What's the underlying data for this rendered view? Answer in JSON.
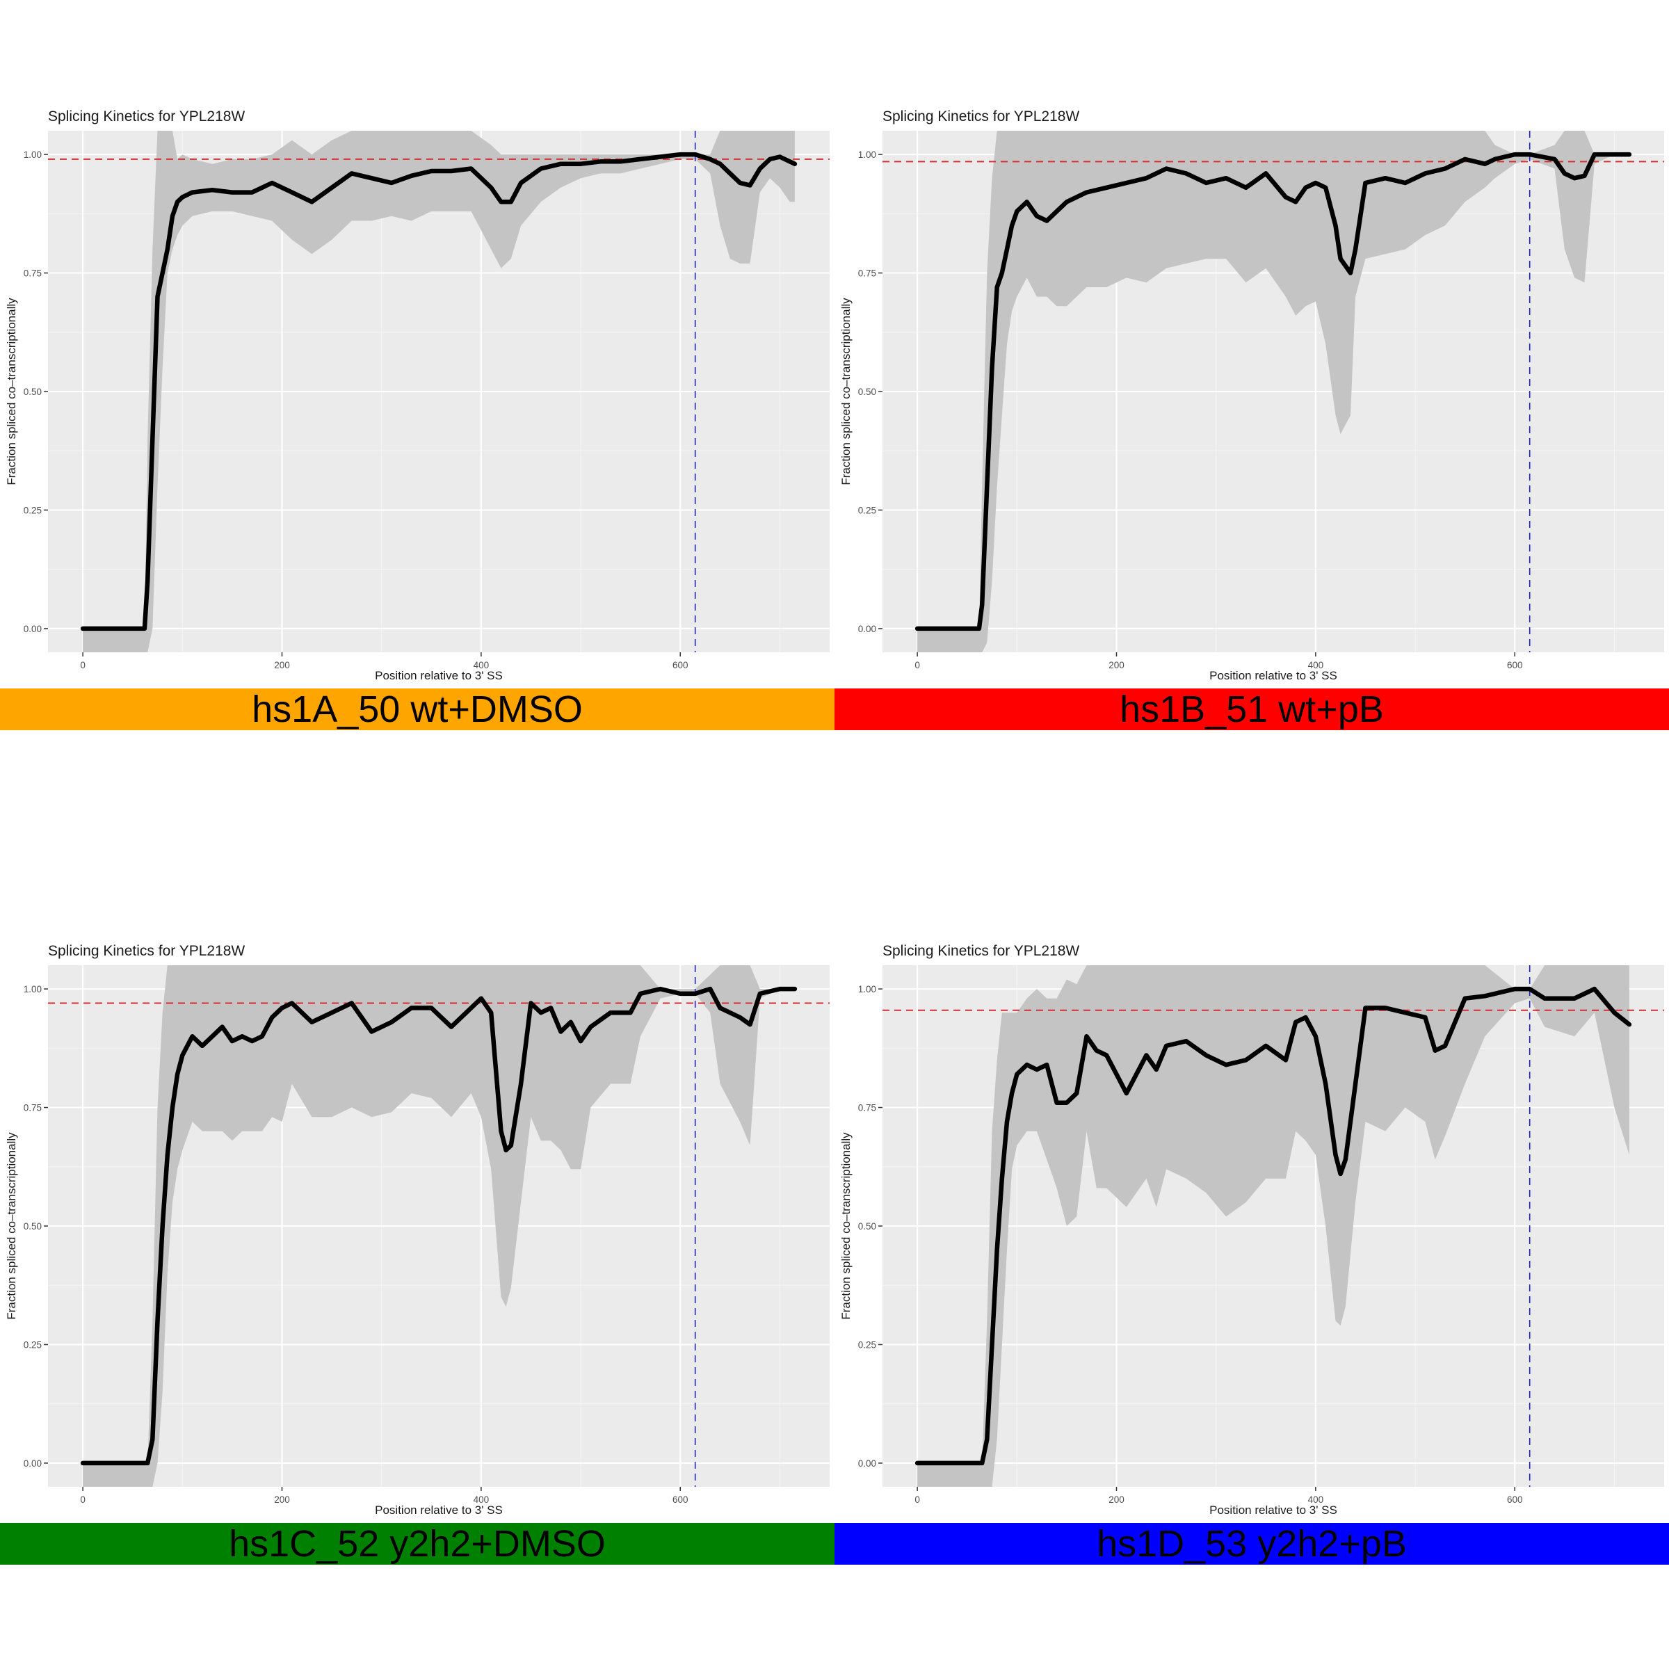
{
  "chart_data": [
    {
      "type": "line",
      "title": "Splicing Kinetics for YPL218W",
      "xlabel": "Position relative to 3' SS",
      "ylabel": "Fraction spliced co–transcriptionally",
      "xlim": [
        -35,
        750
      ],
      "ylim": [
        -0.05,
        1.05
      ],
      "x_ticks": [
        0,
        200,
        400,
        600
      ],
      "y_ticks": [
        0.0,
        0.25,
        0.5,
        0.75,
        1.0
      ],
      "x_tick_labels": [
        "0",
        "200",
        "400",
        "600"
      ],
      "y_tick_labels": [
        "0.00",
        "0.25",
        "0.50",
        "0.75",
        "1.00"
      ],
      "ref_h": 0.99,
      "ref_v": 615,
      "banner_label": "hs1A_50 wt+DMSO",
      "banner_color": "#FFA500",
      "series": [
        {
          "x": [
            0,
            62,
            65,
            70,
            75,
            80,
            85,
            90,
            95,
            100,
            110,
            130,
            150,
            170,
            190,
            210,
            230,
            250,
            270,
            290,
            310,
            330,
            350,
            370,
            390,
            410,
            420,
            430,
            440,
            460,
            480,
            500,
            520,
            540,
            560,
            580,
            600,
            615,
            630,
            640,
            650,
            660,
            670,
            680,
            690,
            700,
            710,
            715
          ],
          "y": [
            0.0,
            0.0,
            0.1,
            0.4,
            0.7,
            0.75,
            0.8,
            0.87,
            0.9,
            0.91,
            0.92,
            0.925,
            0.92,
            0.92,
            0.94,
            0.92,
            0.9,
            0.93,
            0.96,
            0.95,
            0.94,
            0.955,
            0.965,
            0.965,
            0.97,
            0.93,
            0.9,
            0.9,
            0.94,
            0.97,
            0.98,
            0.98,
            0.985,
            0.985,
            0.99,
            0.995,
            1.0,
            1.0,
            0.99,
            0.98,
            0.96,
            0.94,
            0.935,
            0.97,
            0.99,
            0.995,
            0.985,
            0.98
          ],
          "lower": [
            -0.05,
            -0.05,
            -0.05,
            0.0,
            0.3,
            0.55,
            0.75,
            0.8,
            0.83,
            0.85,
            0.87,
            0.88,
            0.88,
            0.87,
            0.86,
            0.82,
            0.79,
            0.82,
            0.86,
            0.86,
            0.87,
            0.86,
            0.88,
            0.88,
            0.88,
            0.8,
            0.76,
            0.78,
            0.85,
            0.9,
            0.93,
            0.95,
            0.96,
            0.96,
            0.97,
            0.98,
            0.99,
            0.99,
            0.96,
            0.85,
            0.78,
            0.77,
            0.77,
            0.92,
            0.95,
            0.93,
            0.9,
            0.9
          ],
          "upper": [
            0.0,
            0.0,
            0.4,
            0.8,
            1.05,
            1.05,
            1.05,
            1.05,
            0.99,
            1.0,
            0.99,
            0.98,
            0.99,
            0.99,
            1.0,
            1.03,
            1.0,
            1.03,
            1.05,
            1.05,
            1.05,
            1.05,
            1.05,
            1.05,
            1.05,
            1.02,
            1.0,
            1.0,
            1.0,
            1.0,
            1.0,
            1.0,
            1.0,
            1.0,
            1.0,
            1.0,
            1.0,
            1.0,
            1.0,
            1.05,
            1.05,
            1.05,
            1.05,
            1.05,
            1.05,
            1.05,
            1.05,
            1.05
          ]
        }
      ]
    },
    {
      "type": "line",
      "title": "Splicing Kinetics for YPL218W",
      "xlabel": "Position relative to 3' SS",
      "ylabel": "Fraction spliced co–transcriptionally",
      "xlim": [
        -35,
        750
      ],
      "ylim": [
        -0.05,
        1.05
      ],
      "x_ticks": [
        0,
        200,
        400,
        600
      ],
      "y_ticks": [
        0.0,
        0.25,
        0.5,
        0.75,
        1.0
      ],
      "x_tick_labels": [
        "0",
        "200",
        "400",
        "600"
      ],
      "y_tick_labels": [
        "0.00",
        "0.25",
        "0.50",
        "0.75",
        "1.00"
      ],
      "ref_h": 0.985,
      "ref_v": 615,
      "banner_label": "hs1B_51 wt+pB",
      "banner_color": "#FF0000",
      "series": [
        {
          "x": [
            0,
            62,
            65,
            70,
            75,
            80,
            85,
            90,
            95,
            100,
            110,
            120,
            130,
            140,
            150,
            170,
            190,
            210,
            230,
            250,
            270,
            290,
            310,
            330,
            350,
            370,
            380,
            390,
            400,
            410,
            420,
            425,
            435,
            440,
            450,
            470,
            490,
            510,
            530,
            550,
            570,
            580,
            600,
            615,
            640,
            650,
            660,
            670,
            680,
            700,
            715
          ],
          "y": [
            0.0,
            0.0,
            0.05,
            0.3,
            0.55,
            0.72,
            0.75,
            0.8,
            0.85,
            0.88,
            0.9,
            0.87,
            0.86,
            0.88,
            0.9,
            0.92,
            0.93,
            0.94,
            0.95,
            0.97,
            0.96,
            0.94,
            0.95,
            0.93,
            0.96,
            0.91,
            0.9,
            0.93,
            0.94,
            0.93,
            0.85,
            0.78,
            0.75,
            0.8,
            0.94,
            0.95,
            0.94,
            0.96,
            0.97,
            0.99,
            0.98,
            0.99,
            1.0,
            1.0,
            0.99,
            0.96,
            0.95,
            0.955,
            1.0,
            1.0,
            1.0
          ],
          "lower": [
            -0.05,
            -0.05,
            -0.05,
            -0.03,
            0.1,
            0.3,
            0.45,
            0.6,
            0.67,
            0.7,
            0.74,
            0.7,
            0.7,
            0.68,
            0.68,
            0.72,
            0.72,
            0.74,
            0.73,
            0.76,
            0.77,
            0.78,
            0.78,
            0.73,
            0.76,
            0.7,
            0.66,
            0.68,
            0.69,
            0.6,
            0.45,
            0.41,
            0.45,
            0.7,
            0.78,
            0.79,
            0.8,
            0.83,
            0.85,
            0.9,
            0.93,
            0.95,
            0.98,
            0.99,
            0.97,
            0.8,
            0.74,
            0.73,
            0.98,
            1.0,
            1.0
          ],
          "upper": [
            0.0,
            0.0,
            0.3,
            0.75,
            0.95,
            1.05,
            1.05,
            1.05,
            1.05,
            1.05,
            1.05,
            1.05,
            1.05,
            1.05,
            1.05,
            1.05,
            1.05,
            1.05,
            1.05,
            1.05,
            1.05,
            1.05,
            1.05,
            1.05,
            1.05,
            1.05,
            1.05,
            1.05,
            1.05,
            1.05,
            1.05,
            1.05,
            1.05,
            1.05,
            1.05,
            1.05,
            1.05,
            1.05,
            1.05,
            1.05,
            1.05,
            1.02,
            1.0,
            1.0,
            1.02,
            1.05,
            1.05,
            1.05,
            1.0,
            1.0,
            1.0
          ]
        }
      ]
    },
    {
      "type": "line",
      "title": "Splicing Kinetics for YPL218W",
      "xlabel": "Position relative to 3' SS",
      "ylabel": "Fraction spliced co–transcriptionally",
      "xlim": [
        -35,
        750
      ],
      "ylim": [
        -0.05,
        1.05
      ],
      "x_ticks": [
        0,
        200,
        400,
        600
      ],
      "y_ticks": [
        0.0,
        0.25,
        0.5,
        0.75,
        1.0
      ],
      "x_tick_labels": [
        "0",
        "200",
        "400",
        "600"
      ],
      "y_tick_labels": [
        "0.00",
        "0.25",
        "0.50",
        "0.75",
        "1.00"
      ],
      "ref_h": 0.97,
      "ref_v": 615,
      "banner_label": "hs1C_52 y2h2+DMSO",
      "banner_color": "#008000",
      "series": [
        {
          "x": [
            0,
            65,
            70,
            75,
            80,
            85,
            90,
            95,
            100,
            110,
            120,
            130,
            140,
            150,
            160,
            170,
            180,
            190,
            200,
            210,
            230,
            250,
            270,
            290,
            310,
            330,
            350,
            370,
            390,
            400,
            410,
            420,
            425,
            430,
            440,
            450,
            460,
            470,
            480,
            490,
            500,
            510,
            530,
            550,
            560,
            580,
            600,
            615,
            630,
            640,
            660,
            670,
            680,
            700,
            715
          ],
          "y": [
            0.0,
            0.0,
            0.05,
            0.3,
            0.5,
            0.65,
            0.75,
            0.82,
            0.86,
            0.9,
            0.88,
            0.9,
            0.92,
            0.89,
            0.9,
            0.89,
            0.9,
            0.94,
            0.96,
            0.97,
            0.93,
            0.95,
            0.97,
            0.91,
            0.93,
            0.96,
            0.96,
            0.92,
            0.96,
            0.98,
            0.95,
            0.7,
            0.66,
            0.67,
            0.8,
            0.97,
            0.95,
            0.96,
            0.91,
            0.93,
            0.89,
            0.92,
            0.95,
            0.95,
            0.99,
            1.0,
            0.99,
            0.99,
            1.0,
            0.96,
            0.94,
            0.925,
            0.99,
            1.0,
            1.0
          ],
          "lower": [
            -0.05,
            -0.05,
            -0.05,
            0.0,
            0.15,
            0.4,
            0.55,
            0.62,
            0.66,
            0.72,
            0.7,
            0.7,
            0.7,
            0.68,
            0.7,
            0.7,
            0.7,
            0.73,
            0.72,
            0.8,
            0.73,
            0.73,
            0.75,
            0.73,
            0.74,
            0.78,
            0.77,
            0.73,
            0.78,
            0.73,
            0.62,
            0.35,
            0.33,
            0.37,
            0.55,
            0.73,
            0.68,
            0.68,
            0.66,
            0.62,
            0.62,
            0.75,
            0.8,
            0.8,
            0.9,
            0.98,
            0.99,
            0.99,
            0.95,
            0.8,
            0.72,
            0.67,
            0.98,
            1.0,
            1.0
          ],
          "upper": [
            0.0,
            0.0,
            0.3,
            0.75,
            0.95,
            1.05,
            1.05,
            1.05,
            1.05,
            1.05,
            1.05,
            1.05,
            1.05,
            1.05,
            1.05,
            1.05,
            1.05,
            1.05,
            1.05,
            1.05,
            1.05,
            1.05,
            1.05,
            1.05,
            1.05,
            1.05,
            1.05,
            1.05,
            1.05,
            1.05,
            1.05,
            1.05,
            1.05,
            1.05,
            1.05,
            1.05,
            1.05,
            1.05,
            1.05,
            1.05,
            1.05,
            1.05,
            1.05,
            1.05,
            1.05,
            1.0,
            1.0,
            1.0,
            1.03,
            1.05,
            1.05,
            1.05,
            1.0,
            1.0,
            1.0
          ]
        }
      ]
    },
    {
      "type": "line",
      "title": "Splicing Kinetics for YPL218W",
      "xlabel": "Position relative to 3' SS",
      "ylabel": "Fraction spliced co–transcriptionally",
      "xlim": [
        -35,
        750
      ],
      "ylim": [
        -0.05,
        1.05
      ],
      "x_ticks": [
        0,
        200,
        400,
        600
      ],
      "y_ticks": [
        0.0,
        0.25,
        0.5,
        0.75,
        1.0
      ],
      "x_tick_labels": [
        "0",
        "200",
        "400",
        "600"
      ],
      "y_tick_labels": [
        "0.00",
        "0.25",
        "0.50",
        "0.75",
        "1.00"
      ],
      "ref_h": 0.955,
      "ref_v": 615,
      "banner_label": "hs1D_53 y2h2+pB",
      "banner_color": "#0000FF",
      "series": [
        {
          "x": [
            0,
            65,
            70,
            75,
            80,
            85,
            90,
            95,
            100,
            110,
            120,
            130,
            140,
            150,
            160,
            170,
            180,
            190,
            200,
            210,
            220,
            230,
            240,
            250,
            270,
            290,
            310,
            330,
            350,
            370,
            380,
            390,
            400,
            410,
            420,
            425,
            430,
            440,
            450,
            470,
            490,
            510,
            520,
            530,
            550,
            570,
            600,
            615,
            630,
            660,
            680,
            700,
            715
          ],
          "y": [
            0.0,
            0.0,
            0.05,
            0.25,
            0.45,
            0.6,
            0.72,
            0.78,
            0.82,
            0.84,
            0.83,
            0.84,
            0.76,
            0.76,
            0.78,
            0.9,
            0.87,
            0.86,
            0.82,
            0.78,
            0.82,
            0.86,
            0.83,
            0.88,
            0.89,
            0.86,
            0.84,
            0.85,
            0.88,
            0.85,
            0.93,
            0.94,
            0.9,
            0.8,
            0.65,
            0.61,
            0.64,
            0.8,
            0.96,
            0.96,
            0.95,
            0.94,
            0.87,
            0.88,
            0.98,
            0.985,
            1.0,
            1.0,
            0.98,
            0.98,
            1.0,
            0.95,
            0.925
          ],
          "lower": [
            -0.05,
            -0.05,
            -0.05,
            -0.05,
            0.05,
            0.25,
            0.45,
            0.62,
            0.67,
            0.7,
            0.7,
            0.64,
            0.58,
            0.5,
            0.52,
            0.7,
            0.58,
            0.58,
            0.56,
            0.54,
            0.57,
            0.6,
            0.54,
            0.62,
            0.6,
            0.57,
            0.52,
            0.55,
            0.6,
            0.6,
            0.7,
            0.68,
            0.65,
            0.5,
            0.3,
            0.29,
            0.33,
            0.55,
            0.72,
            0.7,
            0.75,
            0.72,
            0.64,
            0.69,
            0.8,
            0.9,
            0.97,
            0.98,
            0.92,
            0.9,
            0.95,
            0.75,
            0.65
          ],
          "upper": [
            0.0,
            0.0,
            0.3,
            0.7,
            0.85,
            0.95,
            0.95,
            0.95,
            0.95,
            0.98,
            1.0,
            0.98,
            0.98,
            1.02,
            1.01,
            1.05,
            1.05,
            1.05,
            1.05,
            1.05,
            1.05,
            1.05,
            1.05,
            1.05,
            1.05,
            1.05,
            1.05,
            1.05,
            1.05,
            1.05,
            1.05,
            1.05,
            1.05,
            1.05,
            1.05,
            1.05,
            1.05,
            1.05,
            1.05,
            1.05,
            1.05,
            1.05,
            1.05,
            1.05,
            1.05,
            1.05,
            1.0,
            1.0,
            1.05,
            1.05,
            1.05,
            1.05,
            1.05
          ]
        }
      ]
    }
  ]
}
